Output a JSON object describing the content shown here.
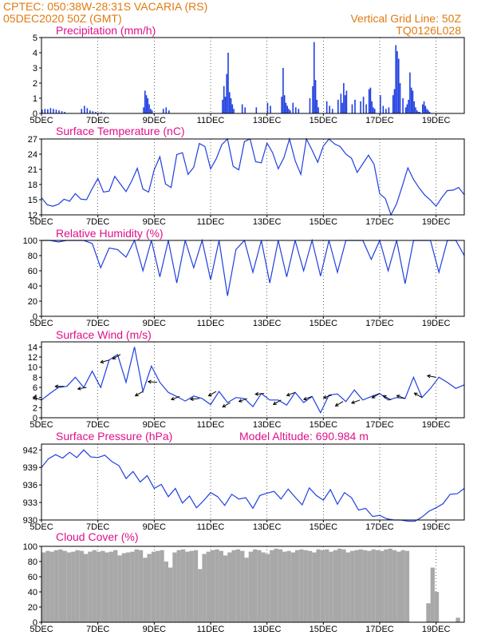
{
  "header": {
    "line1_left": "CPTEC:    050:38W-28:31S   VACARIA (RS)",
    "line2_left": "05DEC2020 50Z (GMT)",
    "line1_right": "Vertical Grid Line: 50Z",
    "line2_right": "TQ0126L028"
  },
  "colors": {
    "header": "#e07b10",
    "title": "#e0108a",
    "series": "#1f3fe0",
    "cloud": "#a8a8a8"
  },
  "x_ticks": [
    "5DEC",
    "7DEC",
    "9DEC",
    "11DEC",
    "13DEC",
    "15DEC",
    "17DEC",
    "19DEC"
  ],
  "model_altitude": "Model Altitude: 690.984 m",
  "chart_data": [
    {
      "type": "bar",
      "title": "Precipitation (mm/h)",
      "ylim": [
        0,
        5
      ],
      "yticks": [
        "0",
        "1",
        "2",
        "3",
        "4",
        "5"
      ],
      "x_unit": "days since 05DEC",
      "x": [
        0.0,
        0.1,
        0.2,
        0.3,
        0.4,
        0.5,
        0.6,
        0.7,
        0.8,
        1.4,
        1.5,
        1.6,
        1.7,
        1.8,
        1.9,
        2.0,
        2.1,
        2.2,
        3.6,
        3.65,
        3.7,
        3.75,
        3.8,
        3.85,
        3.9,
        4.3,
        4.4,
        4.5,
        6.4,
        6.45,
        6.5,
        6.55,
        6.6,
        6.65,
        6.7,
        6.75,
        6.8,
        7.1,
        7.2,
        7.6,
        8.0,
        8.1,
        8.5,
        8.55,
        8.6,
        8.65,
        8.7,
        8.75,
        8.8,
        8.9,
        9.0,
        9.1,
        9.5,
        9.6,
        9.65,
        9.7,
        9.75,
        9.8,
        10.1,
        10.2,
        10.3,
        10.5,
        10.6,
        10.65,
        10.7,
        10.75,
        10.8,
        11.0,
        11.1,
        11.3,
        11.4,
        11.5,
        11.6,
        11.65,
        11.7,
        11.75,
        11.8,
        12.0,
        12.1,
        12.2,
        12.3,
        12.45,
        12.5,
        12.55,
        12.6,
        12.65,
        12.7,
        12.8,
        12.9,
        12.95,
        13.0,
        13.05,
        13.1,
        13.15,
        13.2,
        13.25,
        13.3,
        13.35,
        13.4,
        13.5,
        13.55,
        13.6,
        13.65,
        13.7,
        13.75
      ],
      "values": [
        0.25,
        0.3,
        0.28,
        0.35,
        0.3,
        0.25,
        0.2,
        0.15,
        0.1,
        0.3,
        0.5,
        0.35,
        0.2,
        0.15,
        0.1,
        0.05,
        0.08,
        0.05,
        0.4,
        1.5,
        1.2,
        1.0,
        0.6,
        0.3,
        0.2,
        0.3,
        0.4,
        0.2,
        0.9,
        1.8,
        1.1,
        2.6,
        4.0,
        1.4,
        1.0,
        0.6,
        0.3,
        0.6,
        0.4,
        0.4,
        0.7,
        0.5,
        1.1,
        3.0,
        1.2,
        0.7,
        0.5,
        0.3,
        0.2,
        0.7,
        0.4,
        0.3,
        1.0,
        1.8,
        4.7,
        2.2,
        0.9,
        0.4,
        0.8,
        0.5,
        0.3,
        0.9,
        1.3,
        0.7,
        2.0,
        1.2,
        1.5,
        0.6,
        0.9,
        0.8,
        1.1,
        0.6,
        1.6,
        1.7,
        0.8,
        0.4,
        0.3,
        1.2,
        0.5,
        0.3,
        0.4,
        1.2,
        1.6,
        4.5,
        4.1,
        3.6,
        2.0,
        1.0,
        0.4,
        0.6,
        0.9,
        2.7,
        1.7,
        1.5,
        0.8,
        0.4,
        0.2,
        0.1,
        0.1,
        0.6,
        0.8,
        0.5,
        0.3,
        0.2,
        0.1
      ]
    },
    {
      "type": "line",
      "title": "Surface Temperature (nC)",
      "ylim": [
        12,
        27
      ],
      "yticks": [
        "12",
        "15",
        "18",
        "21",
        "24",
        "27"
      ],
      "x_unit": "days since 05DEC",
      "x": [
        0,
        0.2,
        0.4,
        0.6,
        0.8,
        1.0,
        1.2,
        1.4,
        1.6,
        1.8,
        2.0,
        2.2,
        2.4,
        2.6,
        2.8,
        3.0,
        3.2,
        3.4,
        3.6,
        3.8,
        4.0,
        4.2,
        4.4,
        4.6,
        4.8,
        5.0,
        5.2,
        5.4,
        5.6,
        5.8,
        6.0,
        6.2,
        6.4,
        6.6,
        6.8,
        7.0,
        7.2,
        7.4,
        7.6,
        7.8,
        8.0,
        8.2,
        8.4,
        8.6,
        8.8,
        9.0,
        9.2,
        9.4,
        9.6,
        9.8,
        10.0,
        10.2,
        10.4,
        10.6,
        10.8,
        11.0,
        11.2,
        11.4,
        11.6,
        11.8,
        12.0,
        12.2,
        12.4,
        12.6,
        12.8,
        13.0,
        13.2,
        13.4,
        13.6,
        13.8,
        14.0,
        14.2,
        14.4,
        14.6,
        14.8,
        15.0
      ],
      "values": [
        15.4,
        14.0,
        13.7,
        14.1,
        15.1,
        14.7,
        16.2,
        15.1,
        15.0,
        17.2,
        19.2,
        16.5,
        16.7,
        19.6,
        18.1,
        16.6,
        18.7,
        21.2,
        17.1,
        16.5,
        20.9,
        23.5,
        18.1,
        17.4,
        23.9,
        24.3,
        20.0,
        21.4,
        26.1,
        25.5,
        21.1,
        23.1,
        25.9,
        27.0,
        21.6,
        20.9,
        26.5,
        27.0,
        22.5,
        22.3,
        26.2,
        24.3,
        21.1,
        23.3,
        27.0,
        22.7,
        20.0,
        27.0,
        24.8,
        22.4,
        25.6,
        27.0,
        26.0,
        25.5,
        24.0,
        23.2,
        20.4,
        22.1,
        23.8,
        22.0,
        16.2,
        15.2,
        12.0,
        14.2,
        17.7,
        21.3,
        19.0,
        17.3,
        15.9,
        14.9,
        13.7,
        15.4,
        16.8,
        16.9,
        17.4,
        16.0
      ]
    },
    {
      "type": "line",
      "title": "Relative Humidity (%)",
      "ylim": [
        0,
        100
      ],
      "yticks": [
        "0",
        "20",
        "40",
        "60",
        "80",
        "100"
      ],
      "x_unit": "days since 05DEC",
      "x": [
        0,
        0.3,
        0.6,
        0.9,
        1.2,
        1.5,
        1.8,
        2.1,
        2.4,
        2.7,
        3.0,
        3.3,
        3.6,
        3.9,
        4.2,
        4.5,
        4.8,
        5.1,
        5.4,
        5.7,
        6.0,
        6.3,
        6.6,
        6.9,
        7.2,
        7.5,
        7.8,
        8.1,
        8.4,
        8.7,
        9.0,
        9.3,
        9.6,
        9.9,
        10.2,
        10.5,
        10.8,
        11.1,
        11.4,
        11.7,
        12.0,
        12.3,
        12.6,
        12.9,
        13.2,
        13.5,
        13.8,
        14.1,
        14.4,
        14.7,
        15.0
      ],
      "values": [
        100,
        100,
        98,
        100,
        100,
        100,
        96,
        64,
        90,
        88,
        78,
        100,
        60,
        100,
        52,
        100,
        44,
        100,
        64,
        100,
        48,
        100,
        27,
        88,
        100,
        58,
        100,
        44,
        100,
        52,
        100,
        60,
        100,
        53,
        100,
        58,
        100,
        100,
        100,
        75,
        100,
        60,
        100,
        43,
        100,
        100,
        100,
        58,
        100,
        100,
        80
      ]
    },
    {
      "type": "line",
      "title": "Surface Wind (m/s)",
      "ylim": [
        0,
        15
      ],
      "yticks": [
        "0",
        "2",
        "4",
        "6",
        "8",
        "10",
        "12",
        "14"
      ],
      "x_unit": "days since 05DEC",
      "x": [
        0,
        0.3,
        0.6,
        0.9,
        1.2,
        1.5,
        1.8,
        2.1,
        2.4,
        2.7,
        3.0,
        3.3,
        3.6,
        3.9,
        4.2,
        4.5,
        4.8,
        5.1,
        5.4,
        5.7,
        6.0,
        6.3,
        6.6,
        6.9,
        7.2,
        7.5,
        7.8,
        8.1,
        8.4,
        8.7,
        9.0,
        9.3,
        9.6,
        9.9,
        10.2,
        10.5,
        10.8,
        11.1,
        11.4,
        11.7,
        12.0,
        12.3,
        12.6,
        12.9,
        13.2,
        13.5,
        13.8,
        14.1,
        14.4,
        14.7,
        15.0
      ],
      "values": [
        3.5,
        4.8,
        6.0,
        6.2,
        8.0,
        6.0,
        9.2,
        6.0,
        11.4,
        12.5,
        7.0,
        14.0,
        5.2,
        10.2,
        7.0,
        5.0,
        4.2,
        3.3,
        4.3,
        3.8,
        2.6,
        5.2,
        3.0,
        4.0,
        3.8,
        2.2,
        4.8,
        3.5,
        3.5,
        2.5,
        5.0,
        3.0,
        4.2,
        1.0,
        4.5,
        4.7,
        3.2,
        5.5,
        3.5,
        4.2,
        4.8,
        3.5,
        4.0,
        3.8,
        8.0,
        4.0,
        5.8,
        8.0,
        7.0,
        5.8,
        6.5
      ],
      "barbs_x": [
        0.0,
        0.8,
        1.6,
        2.4,
        2.8,
        3.6,
        4.1,
        4.9,
        5.6,
        6.2,
        6.7,
        7.3,
        7.9,
        8.5,
        9.0,
        9.6,
        10.3,
        10.7,
        11.3,
        12.0,
        12.4,
        12.9,
        13.5,
        14.0
      ],
      "barbs_dir_deg": [
        110,
        90,
        80,
        75,
        60,
        60,
        95,
        70,
        85,
        60,
        60,
        70,
        85,
        60,
        70,
        70,
        70,
        60,
        70,
        60,
        120,
        110,
        120,
        100
      ]
    },
    {
      "type": "line",
      "title": "Surface Pressure (hPa)",
      "ylim": [
        930,
        943
      ],
      "yticks": [
        "930",
        "933",
        "936",
        "939",
        "942"
      ],
      "x_unit": "days since 05DEC",
      "x": [
        0,
        0.25,
        0.5,
        0.75,
        1.0,
        1.25,
        1.5,
        1.75,
        2.0,
        2.25,
        2.5,
        2.75,
        3.0,
        3.25,
        3.5,
        3.75,
        4.0,
        4.25,
        4.5,
        4.75,
        5.0,
        5.25,
        5.5,
        5.75,
        6.0,
        6.25,
        6.5,
        6.75,
        7.0,
        7.25,
        7.5,
        7.75,
        8.0,
        8.25,
        8.5,
        8.75,
        9.0,
        9.25,
        9.5,
        9.75,
        10.0,
        10.25,
        10.5,
        10.75,
        11.0,
        11.25,
        11.5,
        11.75,
        12.0,
        12.25,
        12.5,
        12.75,
        13.0,
        13.25,
        13.5,
        13.75,
        14.0,
        14.25,
        14.5,
        14.75,
        15.0
      ],
      "values": [
        939.0,
        940.5,
        941.2,
        940.6,
        941.6,
        940.7,
        942.0,
        940.8,
        940.7,
        941.1,
        940.0,
        939.3,
        937.1,
        938.3,
        936.5,
        937.6,
        935.4,
        936.1,
        934.0,
        935.4,
        932.9,
        934.1,
        932.1,
        933.3,
        934.7,
        934.0,
        932.5,
        934.4,
        933.6,
        933.8,
        932.0,
        934.2,
        934.6,
        934.9,
        933.6,
        935.3,
        933.9,
        932.6,
        935.5,
        934.2,
        933.4,
        935.2,
        932.7,
        934.7,
        933.8,
        931.7,
        932.0,
        930.6,
        930.8,
        930.2,
        930.0,
        930.0,
        929.8,
        929.8,
        930.5,
        931.5,
        932.1,
        932.8,
        934.4,
        934.5,
        935.4
      ]
    },
    {
      "type": "bar",
      "title": "Cloud Cover (%)",
      "ylim": [
        0,
        100
      ],
      "yticks": [
        "0",
        "20",
        "40",
        "60",
        "80",
        "100"
      ],
      "x_unit": "days since 05DEC",
      "x": [
        0.0,
        0.15,
        0.3,
        0.45,
        0.6,
        0.75,
        0.9,
        1.05,
        1.2,
        1.35,
        1.5,
        1.65,
        1.8,
        1.95,
        2.1,
        2.25,
        2.4,
        2.55,
        2.7,
        2.85,
        3.0,
        3.15,
        3.3,
        3.45,
        3.6,
        3.75,
        3.9,
        4.05,
        4.2,
        4.35,
        4.5,
        4.65,
        4.8,
        4.95,
        5.1,
        5.25,
        5.4,
        5.55,
        5.7,
        5.85,
        6.0,
        6.15,
        6.3,
        6.45,
        6.6,
        6.75,
        6.9,
        7.05,
        7.2,
        7.35,
        7.5,
        7.65,
        7.8,
        7.95,
        8.1,
        8.25,
        8.4,
        8.55,
        8.7,
        8.85,
        9.0,
        9.15,
        9.3,
        9.45,
        9.6,
        9.75,
        9.9,
        10.05,
        10.2,
        10.35,
        10.5,
        10.65,
        10.8,
        10.95,
        11.1,
        11.25,
        11.4,
        11.55,
        11.7,
        11.85,
        12.0,
        12.15,
        12.3,
        12.45,
        12.6,
        12.75,
        12.9,
        13.05,
        13.2,
        13.35,
        13.5,
        13.65,
        13.8,
        13.95,
        14.1,
        14.25,
        14.4,
        14.55,
        14.7,
        14.85
      ],
      "values": [
        92,
        94,
        93,
        95,
        96,
        94,
        92,
        93,
        95,
        94,
        90,
        93,
        95,
        93,
        94,
        92,
        93,
        95,
        88,
        91,
        92,
        93,
        96,
        95,
        85,
        90,
        93,
        94,
        95,
        80,
        72,
        92,
        95,
        96,
        93,
        94,
        95,
        70,
        90,
        93,
        95,
        96,
        94,
        88,
        92,
        95,
        96,
        94,
        85,
        93,
        96,
        95,
        92,
        90,
        95,
        97,
        96,
        93,
        94,
        92,
        95,
        96,
        95,
        94,
        92,
        96,
        95,
        96,
        93,
        95,
        97,
        96,
        92,
        94,
        95,
        96,
        95,
        94,
        96,
        95,
        94,
        96,
        97,
        95,
        93,
        95,
        94,
        0,
        0,
        0,
        0,
        25,
        72,
        40,
        0,
        0,
        0,
        0,
        6,
        0
      ]
    }
  ]
}
